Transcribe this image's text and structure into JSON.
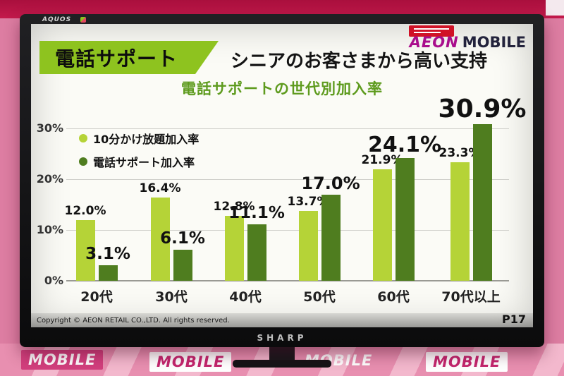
{
  "backdrop": {
    "brand": "MOBILE"
  },
  "tv": {
    "maker": "SHARP",
    "panel_logo": "AQUOS"
  },
  "slide": {
    "logo": {
      "aeon": "AEON",
      "mobile": "MOBILE"
    },
    "banner_label": "電話サポート",
    "title": "シニアのお客さまから高い支持",
    "copyright": "Copyright © AEON RETAIL CO.,LTD. All rights reserved.",
    "page_number": "P17"
  },
  "chart_data": {
    "type": "bar",
    "title": "電話サポートの世代別加入率",
    "categories": [
      "20代",
      "30代",
      "40代",
      "50代",
      "60代",
      "70代以上"
    ],
    "series": [
      {
        "name": "10分かけ放題加入率",
        "color": "#b5d337",
        "values": [
          12.0,
          16.4,
          12.8,
          13.7,
          21.9,
          23.3
        ]
      },
      {
        "name": "電話サポート加入率",
        "color": "#4f7d1f",
        "values": [
          3.1,
          6.1,
          11.1,
          17.0,
          24.1,
          30.9
        ]
      }
    ],
    "yticks": [
      "0%",
      "10%",
      "20%",
      "30%"
    ],
    "ylim": [
      0,
      31
    ],
    "value_suffix": "%",
    "legend_position": "top-left",
    "grid": true
  }
}
